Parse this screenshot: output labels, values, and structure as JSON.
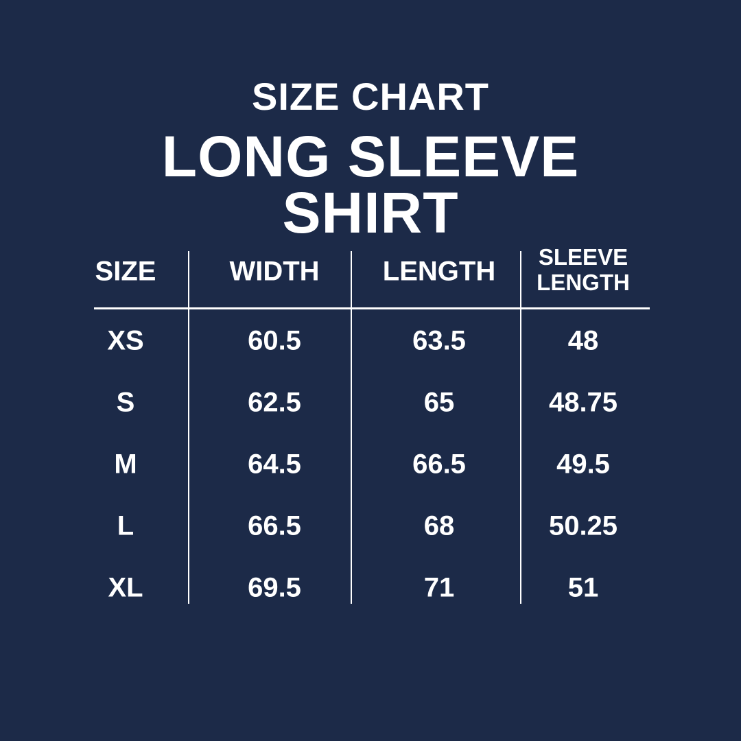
{
  "heading": {
    "subtitle": "SIZE CHART",
    "title_line1": "LONG SLEEVE",
    "title_line2": "SHIRT"
  },
  "table": {
    "columns": [
      "SIZE",
      "WIDTH",
      "LENGTH",
      "SLEEVE LENGTH"
    ],
    "column_lines": [
      [
        "SIZE"
      ],
      [
        "WIDTH"
      ],
      [
        "LENGTH"
      ],
      [
        "SLEEVE",
        "LENGTH"
      ]
    ],
    "rows": [
      [
        "XS",
        "60.5",
        "63.5",
        "48"
      ],
      [
        "S",
        "62.5",
        "65",
        "48.75"
      ],
      [
        "M",
        "64.5",
        "66.5",
        "49.5"
      ],
      [
        "L",
        "66.5",
        "68",
        "50.25"
      ],
      [
        "XL",
        "69.5",
        "71",
        "51"
      ]
    ]
  },
  "colors": {
    "background": "#1c2a48",
    "text": "#ffffff"
  }
}
